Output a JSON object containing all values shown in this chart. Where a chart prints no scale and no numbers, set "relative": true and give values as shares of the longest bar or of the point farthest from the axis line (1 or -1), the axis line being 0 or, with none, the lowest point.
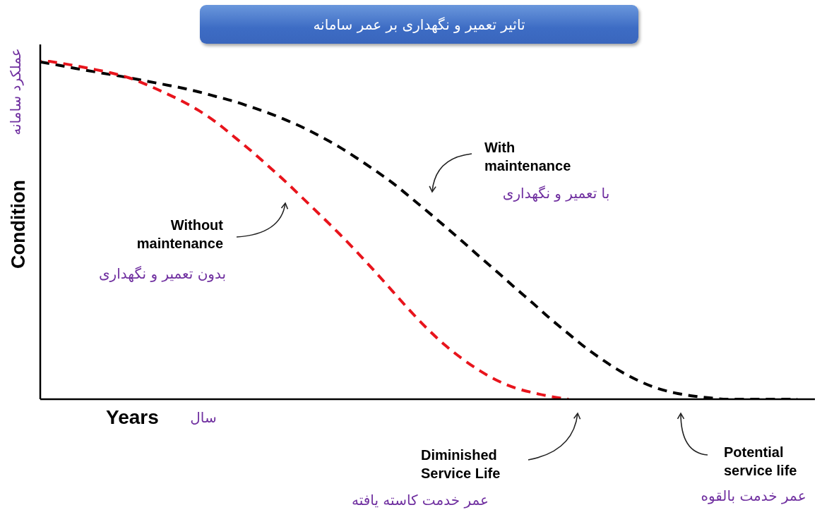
{
  "chart_data": {
    "type": "line",
    "title": "تاثیر تعمیر و نگهداری بر عمر سامانه",
    "xlabel": "Years",
    "ylabel": "Condition",
    "relative": true,
    "line_style": "dashed",
    "marker": "none",
    "categories": [
      null,
      null,
      null,
      null,
      null,
      null,
      null,
      null,
      null,
      null,
      null,
      null,
      null,
      null,
      null,
      null,
      null,
      null,
      null,
      null,
      null,
      null,
      null,
      null,
      null,
      null,
      null,
      null,
      null,
      null,
      null,
      null,
      null,
      null,
      null,
      null,
      null,
      null,
      null,
      null,
      null,
      null,
      null,
      null,
      null
    ],
    "series": [
      {
        "color": "#000000",
        "values": [
          0.994,
          0.985,
          0.975,
          0.966,
          0.957,
          0.948,
          0.938,
          0.928,
          0.918,
          0.906,
          0.892,
          0.878,
          0.861,
          0.843,
          0.822,
          0.799,
          0.772,
          0.743,
          0.71,
          0.675,
          0.638,
          0.596,
          0.553,
          0.509,
          0.464,
          0.418,
          0.373,
          0.327,
          0.282,
          0.236,
          0.193,
          0.151,
          0.114,
          0.081,
          0.054,
          0.033,
          0.019,
          0.01,
          0.004,
          0,
          0,
          0,
          0,
          0,
          null
        ]
      },
      {
        "color": "#e8141c",
        "values": [
          1.0,
          0.992,
          0.983,
          0.973,
          0.962,
          0.948,
          0.928,
          0.905,
          0.88,
          0.851,
          0.816,
          0.774,
          0.731,
          0.685,
          0.638,
          0.588,
          0.538,
          0.487,
          0.433,
          0.377,
          0.319,
          0.261,
          0.207,
          0.159,
          0.118,
          0.083,
          0.054,
          0.033,
          0.019,
          0.008,
          0,
          null,
          null,
          null,
          null,
          null,
          null,
          null,
          null,
          null,
          null,
          null,
          null,
          null,
          null
        ]
      }
    ],
    "annotations": [
      "عملکرد سامانه",
      "With maintenance",
      "با تعمیر و نگهداری",
      "Without maintenance",
      "بدون تعمیر و نگهداری",
      "سال",
      "Diminished Service Life",
      "Potential service life",
      "عمر خدمت کاسته یافته",
      "عمر خدمت بالقوه"
    ]
  }
}
